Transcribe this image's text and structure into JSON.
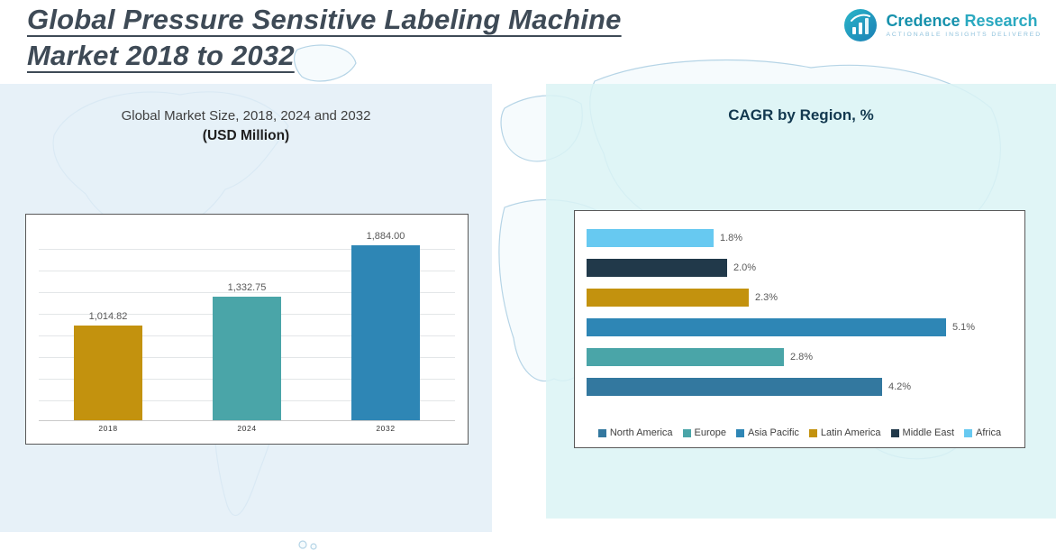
{
  "header": {
    "title_line1": "Global Pressure Sensitive Labeling Machine",
    "title_line2": "Market 2018 to 2032"
  },
  "logo": {
    "brand_first": "Credence",
    "brand_second": "Research",
    "tagline": "Actionable Insights Delivered"
  },
  "left_chart": {
    "title": "Global Market Size, 2018, 2024 and 2032",
    "subtitle": "(USD Million)"
  },
  "right_chart": {
    "title": "CAGR by Region, %"
  },
  "chart_data": [
    {
      "type": "bar",
      "title": "Global Market Size, 2018, 2024 and 2032",
      "subtitle": "(USD Million)",
      "categories": [
        "2018",
        "2024",
        "2032"
      ],
      "values": [
        1014.82,
        1332.75,
        1884.0
      ],
      "labels": [
        "1,014.82",
        "1,332.75",
        "1,884.00"
      ],
      "colors": [
        "#C3920E",
        "#4AA5A8",
        "#2E86B5"
      ],
      "xlabel": "",
      "ylabel": "USD Million",
      "ylim": [
        0,
        2000
      ],
      "grid": true,
      "legend_position": "none"
    },
    {
      "type": "bar-horizontal",
      "title": "CAGR by Region, %",
      "series": [
        {
          "name": "Africa",
          "value": 1.8,
          "label": "1.8%",
          "color": "#67C9F1"
        },
        {
          "name": "Middle East",
          "value": 2.0,
          "label": "2.0%",
          "color": "#21394A"
        },
        {
          "name": "Latin America",
          "value": 2.3,
          "label": "2.3%",
          "color": "#C3920E"
        },
        {
          "name": "Asia Pacific",
          "value": 5.1,
          "label": "5.1%",
          "color": "#2E86B5"
        },
        {
          "name": "Europe",
          "value": 2.8,
          "label": "2.8%",
          "color": "#4AA5A8"
        },
        {
          "name": "North America",
          "value": 4.2,
          "label": "4.2%",
          "color": "#33789F"
        }
      ],
      "legend": [
        "North America",
        "Europe",
        "Asia Pacific",
        "Latin America",
        "Middle East",
        "Africa"
      ],
      "xlim": [
        0,
        5.5
      ],
      "grid": false,
      "legend_position": "bottom"
    }
  ]
}
